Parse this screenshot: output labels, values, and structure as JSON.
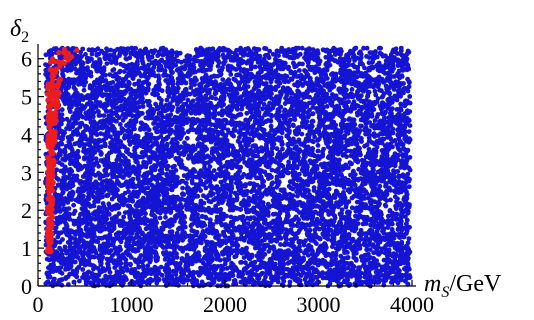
{
  "chart_data": {
    "type": "scatter",
    "title": "",
    "xlabel": "m_S / GeV",
    "xlabel_parts": {
      "symbol": "m",
      "subscript": "S",
      "unit": "/GeV"
    },
    "ylabel": "δ2",
    "ylabel_parts": {
      "symbol": "δ",
      "subscript": "2"
    },
    "xlim": [
      0,
      4000
    ],
    "ylim": [
      0,
      6.283
    ],
    "xticks": [
      0,
      1000,
      2000,
      3000,
      4000
    ],
    "yticks": [
      0,
      1,
      2,
      3,
      4,
      5,
      6
    ],
    "xtick_labels": [
      "0",
      "1000",
      "2000",
      "3000",
      "4000"
    ],
    "ytick_labels": [
      "0",
      "1",
      "2",
      "3",
      "4",
      "5",
      "6"
    ],
    "grid": false,
    "legend": "none",
    "series": [
      {
        "color": "#1414d2",
        "description_region": {
          "x_range": [
            80,
            3980
          ],
          "y_range": [
            0,
            6.283
          ]
        },
        "density": "uniform-dense"
      },
      {
        "color": "#ee1c1c",
        "region_points": [
          [
            120,
            0.9
          ],
          [
            125,
            1.2
          ],
          [
            135,
            1.9
          ],
          [
            140,
            2.3
          ],
          [
            150,
            2.8
          ],
          [
            150,
            3.2
          ],
          [
            160,
            3.6
          ],
          [
            170,
            4.1
          ],
          [
            180,
            4.5
          ],
          [
            200,
            4.9
          ],
          [
            220,
            5.3
          ],
          [
            260,
            5.7
          ],
          [
            320,
            6.0
          ],
          [
            400,
            6.2
          ],
          [
            460,
            6.25
          ]
        ],
        "density": "band"
      }
    ]
  }
}
